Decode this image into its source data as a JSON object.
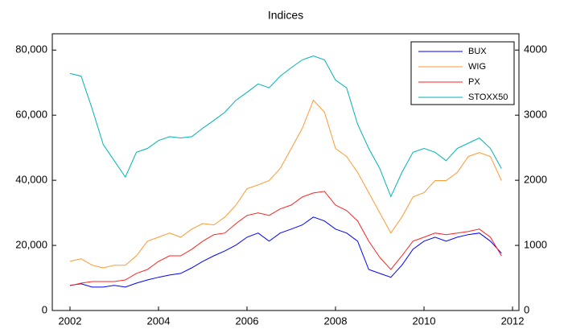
{
  "chart_data": {
    "type": "line",
    "title": "Indices",
    "x": [
      2002.0,
      2002.25,
      2002.5,
      2002.75,
      2003.0,
      2003.25,
      2003.5,
      2003.75,
      2004.0,
      2004.25,
      2004.5,
      2004.75,
      2005.0,
      2005.25,
      2005.5,
      2005.75,
      2006.0,
      2006.25,
      2006.5,
      2006.75,
      2007.0,
      2007.25,
      2007.5,
      2007.75,
      2008.0,
      2008.25,
      2008.5,
      2008.75,
      2009.0,
      2009.25,
      2009.5,
      2009.75,
      2010.0,
      2010.25,
      2010.5,
      2010.75,
      2011.0,
      2011.25,
      2011.5,
      2011.75
    ],
    "series": [
      {
        "name": "BUX",
        "color": "#0000ff",
        "values": [
          7700,
          8200,
          7200,
          7200,
          7700,
          7200,
          8400,
          9400,
          10200,
          10900,
          11400,
          13100,
          15100,
          16800,
          18300,
          20100,
          22500,
          23800,
          21300,
          23800,
          25000,
          26300,
          28700,
          27500,
          25000,
          23800,
          21300,
          12600,
          11400,
          10200,
          13900,
          18800,
          21300,
          22500,
          21300,
          22500,
          23300,
          23800,
          21300,
          17600
        ]
      },
      {
        "name": "WIG",
        "color": "#ff9933",
        "values": [
          15100,
          15900,
          13900,
          13100,
          13900,
          13900,
          16800,
          21300,
          22500,
          23800,
          22500,
          25000,
          26700,
          26300,
          28700,
          32400,
          37400,
          38600,
          39900,
          43600,
          49800,
          56000,
          64600,
          60900,
          49800,
          47300,
          42400,
          36200,
          30000,
          23800,
          28700,
          34900,
          36200,
          39900,
          39900,
          42400,
          47300,
          48500,
          47300,
          39900
        ]
      },
      {
        "name": "PX",
        "color": "#ff2222",
        "axis": "y2",
        "values": [
          380,
          420,
          445,
          445,
          445,
          470,
          570,
          630,
          755,
          840,
          840,
          940,
          1065,
          1165,
          1190,
          1335,
          1460,
          1500,
          1460,
          1560,
          1620,
          1745,
          1805,
          1830,
          1620,
          1535,
          1375,
          1065,
          815,
          630,
          840,
          1065,
          1125,
          1190,
          1165,
          1190,
          1215,
          1250,
          1125,
          840
        ]
      },
      {
        "name": "STOXX50",
        "color": "#00b3b3",
        "axis": "y2",
        "values": [
          3640,
          3600,
          3100,
          2550,
          2300,
          2050,
          2430,
          2490,
          2610,
          2670,
          2650,
          2670,
          2800,
          2920,
          3045,
          3230,
          3350,
          3480,
          3420,
          3600,
          3730,
          3850,
          3910,
          3850,
          3540,
          3420,
          2860,
          2490,
          2180,
          1750,
          2120,
          2430,
          2490,
          2430,
          2300,
          2490,
          2570,
          2650,
          2490,
          2180
        ]
      }
    ],
    "xlim": [
      2001.6,
      2012.145
    ],
    "xticks": [
      2002,
      2004,
      2006,
      2008,
      2010,
      2012
    ],
    "ylim": [
      0,
      85000
    ],
    "yticks": [
      0,
      {
        "value": 20000,
        "label": "20,000"
      },
      {
        "value": 40000,
        "label": "40,000"
      },
      {
        "value": 60000,
        "label": "60,000"
      },
      {
        "value": 80000,
        "label": "80,000"
      }
    ],
    "y2lim": [
      0,
      4250
    ],
    "y2ticks": [
      0,
      1000,
      2000,
      3000,
      4000
    ],
    "legend": "upper right"
  }
}
